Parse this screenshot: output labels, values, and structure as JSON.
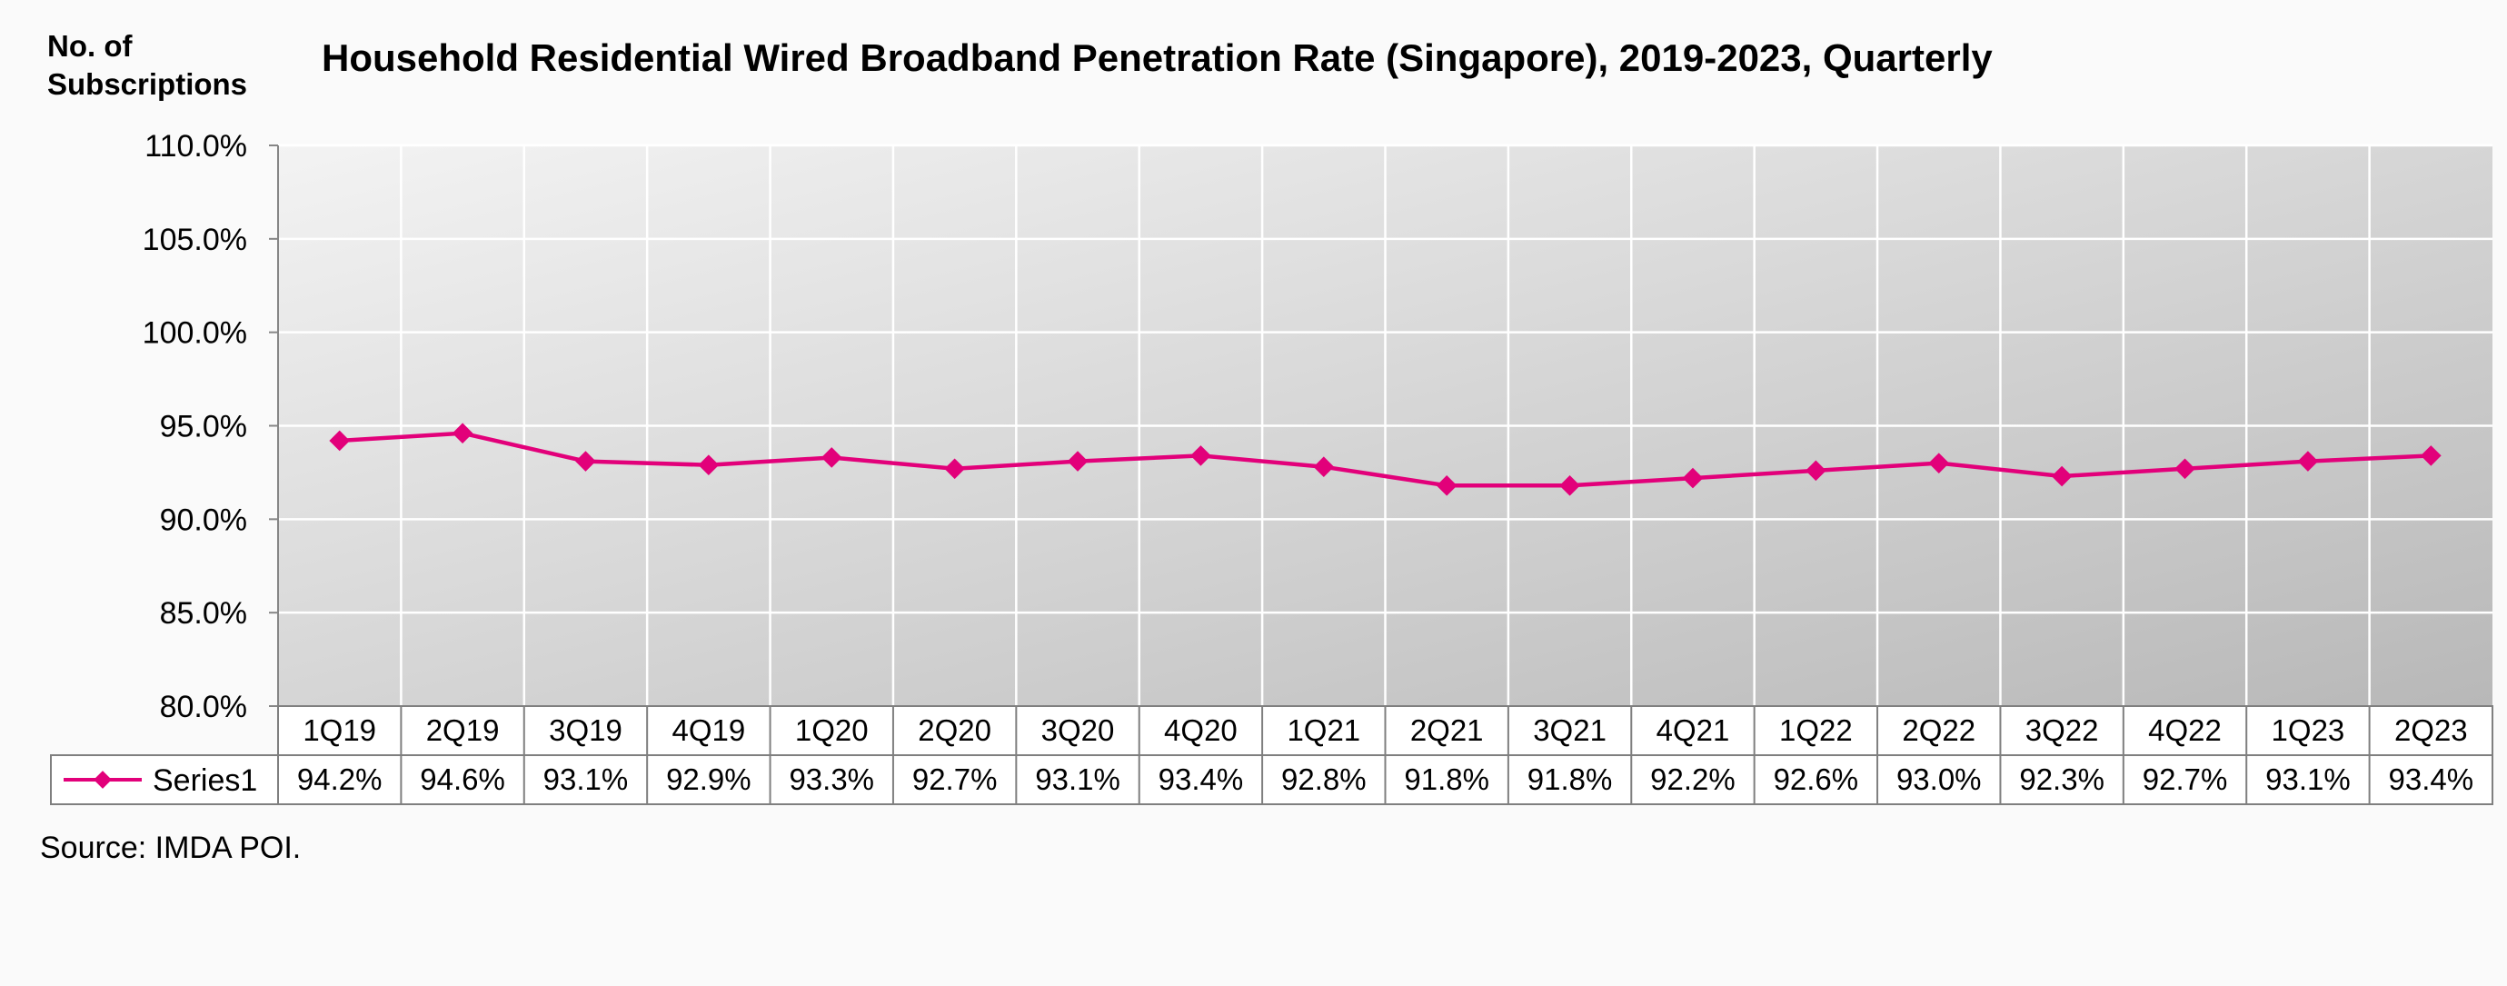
{
  "chart_data": {
    "type": "line",
    "title": "Household Residential Wired Broadband Penetration Rate (Singapore), 2019-2023, Quarterly",
    "ylabel_lines": [
      "No. of",
      "Subscriptions"
    ],
    "xlabel": "",
    "ylim": [
      80,
      110
    ],
    "y_ticks": [
      "110.0%",
      "105.0%",
      "100.0%",
      "95.0%",
      "90.0%",
      "85.0%",
      "80.0%"
    ],
    "y_tick_values": [
      110,
      105,
      100,
      95,
      90,
      85,
      80
    ],
    "categories": [
      "1Q19",
      "2Q19",
      "3Q19",
      "4Q19",
      "1Q20",
      "2Q20",
      "3Q20",
      "4Q20",
      "1Q21",
      "2Q21",
      "3Q21",
      "4Q21",
      "1Q22",
      "2Q22",
      "3Q22",
      "4Q22",
      "1Q23",
      "2Q23"
    ],
    "series": [
      {
        "name": "Series1",
        "values": [
          94.2,
          94.6,
          93.1,
          92.9,
          93.3,
          92.7,
          93.1,
          93.4,
          92.8,
          91.8,
          91.8,
          92.2,
          92.6,
          93.0,
          92.3,
          92.7,
          93.1,
          93.4
        ],
        "labels": [
          "94.2%",
          "94.6%",
          "93.1%",
          "92.9%",
          "93.3%",
          "92.7%",
          "93.1%",
          "93.4%",
          "92.8%",
          "91.8%",
          "91.8%",
          "92.2%",
          "92.6%",
          "93.0%",
          "92.3%",
          "92.7%",
          "93.1%",
          "93.4%"
        ],
        "color": "#e2007a"
      }
    ],
    "grid": true,
    "data_table": true,
    "legend": "data-table-left",
    "source": "Source: IMDA POI.",
    "colors": {
      "plot_gradient_start": "#f3f3f3",
      "plot_gradient_end": "#b8b8b8",
      "gridline": "#ffffff",
      "table_border": "#7f7f7f",
      "axis": "#868686"
    }
  }
}
